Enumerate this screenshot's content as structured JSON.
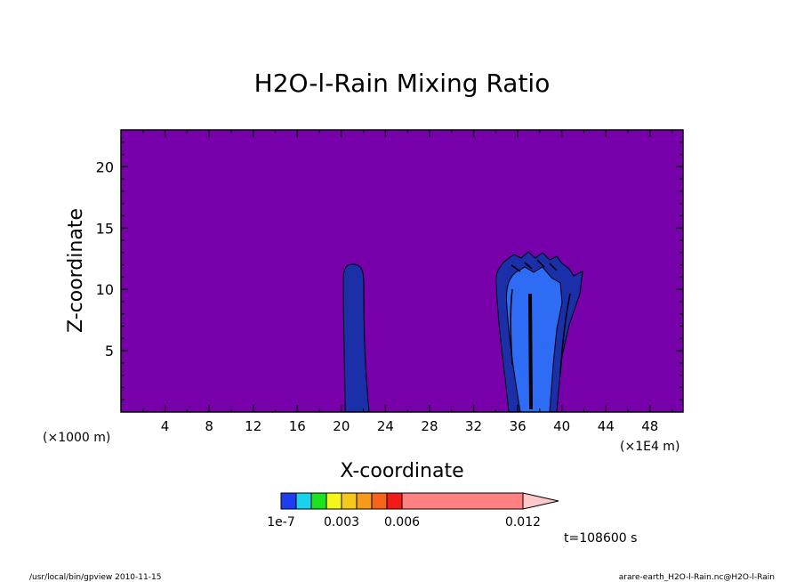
{
  "chart_data": {
    "type": "heatmap",
    "title": "H2O-l-Rain Mixing Ratio",
    "xlabel": "X-coordinate",
    "ylabel": "Z-coordinate",
    "x_unit_left": "(×1000 m)",
    "x_unit_right": "(×1E4 m)",
    "xlim": [
      0,
      51
    ],
    "ylim": [
      0,
      23
    ],
    "x_ticks": [
      4,
      8,
      12,
      16,
      20,
      24,
      28,
      32,
      36,
      40,
      44,
      48
    ],
    "y_ticks": [
      5,
      10,
      15,
      20
    ],
    "background_color": "#7700aa",
    "colorbar": {
      "levels": [
        1e-07,
        0.0015,
        0.003,
        0.0045,
        0.006,
        0.0075,
        0.009,
        0.012
      ],
      "labels": [
        "1e-7",
        "0.003",
        "0.006",
        "0.012"
      ],
      "colors": [
        "#1e3cf0",
        "#19d2ee",
        "#1fe11f",
        "#f5f51a",
        "#f5c81a",
        "#f59a1a",
        "#f5641a",
        "#f51a1a",
        "#ff8080",
        "#ffc8c8"
      ]
    },
    "time_label": "t=108600 s",
    "features": [
      {
        "name": "narrow-column",
        "x_center": 21,
        "z_top": 12,
        "level": "1e-7"
      },
      {
        "name": "convective-cell",
        "x_range": [
          34.5,
          42
        ],
        "z_top": 13,
        "level": "0.0015"
      }
    ]
  },
  "footer": {
    "left": "/usr/local/bin/gpview   2010-11-15",
    "right": "arare-earth_H2O-l-Rain.nc@H2O-l-Rain"
  }
}
